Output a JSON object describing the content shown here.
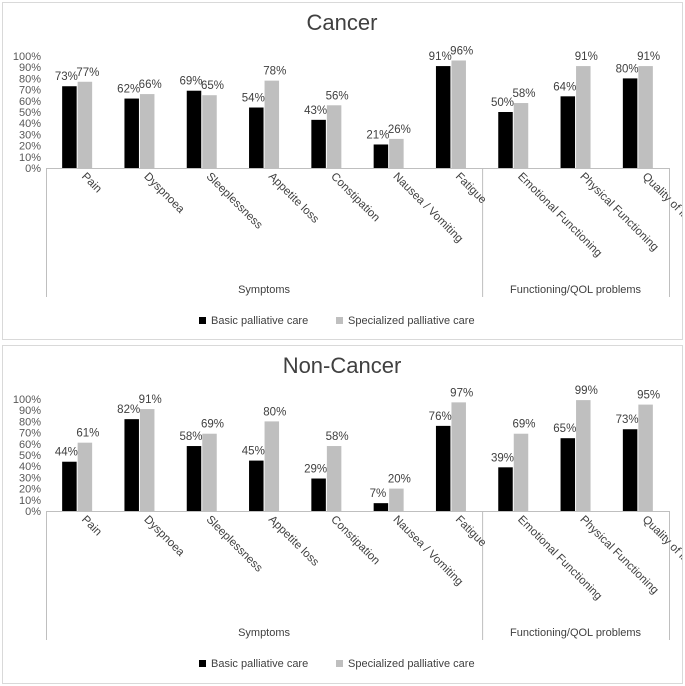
{
  "chart_data": [
    {
      "type": "bar",
      "title": "Cancer",
      "categories": [
        "Pain",
        "Dyspnoea",
        "Sleeplessness",
        "Appetite loss",
        "Constipation",
        "Nausea / Vomiting",
        "Fatigue",
        "Emotional Functioning",
        "Physical Functioning",
        "Quality of life"
      ],
      "series": [
        {
          "name": "Basic palliative care",
          "color": "#000000",
          "values": [
            73,
            62,
            69,
            54,
            43,
            21,
            91,
            50,
            64,
            80
          ],
          "labels": [
            "73%",
            "62%",
            "69%",
            "54%",
            "43%",
            "21%",
            "91%",
            "50%",
            "64%",
            "80%"
          ]
        },
        {
          "name": "Specialized palliative care",
          "color": "#bfbfbf",
          "values": [
            77,
            66,
            65,
            78,
            56,
            26,
            96,
            58,
            91,
            91
          ],
          "labels": [
            "77%",
            "66%",
            "65%",
            "78%",
            "56%",
            "26%",
            "96%",
            "58%",
            "91%",
            "91%"
          ]
        }
      ],
      "groups": [
        {
          "label": "Symptoms",
          "from": 0,
          "to": 6
        },
        {
          "label": "Functioning/QOL problems",
          "from": 7,
          "to": 9
        }
      ],
      "yticks": [
        "0%",
        "10%",
        "20%",
        "30%",
        "40%",
        "50%",
        "60%",
        "70%",
        "80%",
        "90%",
        "100%"
      ],
      "ylim": [
        0,
        100
      ],
      "legend": "bottom",
      "grid": false
    },
    {
      "type": "bar",
      "title": "Non-Cancer",
      "categories": [
        "Pain",
        "Dyspnoea",
        "Sleeplessness",
        "Appetite loss",
        "Constipation",
        "Nausea / Vomiting",
        "Fatigue",
        "Emotional Functioning",
        "Physical Functioning",
        "Quality of life"
      ],
      "series": [
        {
          "name": "Basic palliative care",
          "color": "#000000",
          "values": [
            44,
            82,
            58,
            45,
            29,
            7,
            76,
            39,
            65,
            73
          ],
          "labels": [
            "44%",
            "82%",
            "58%",
            "45%",
            "29%",
            "7%",
            "76%",
            "39%",
            "65%",
            "73%"
          ]
        },
        {
          "name": "Specialized palliative care",
          "color": "#bfbfbf",
          "values": [
            61,
            91,
            69,
            80,
            58,
            20,
            97,
            69,
            99,
            95
          ],
          "labels": [
            "61%",
            "91%",
            "69%",
            "80%",
            "58%",
            "20%",
            "97%",
            "69%",
            "99%",
            "95%"
          ]
        }
      ],
      "groups": [
        {
          "label": "Symptoms",
          "from": 0,
          "to": 6
        },
        {
          "label": "Functioning/QOL problems",
          "from": 7,
          "to": 9
        }
      ],
      "yticks": [
        "0%",
        "10%",
        "20%",
        "30%",
        "40%",
        "50%",
        "60%",
        "70%",
        "80%",
        "90%",
        "100%"
      ],
      "ylim": [
        0,
        100
      ],
      "legend": "bottom",
      "grid": false
    }
  ]
}
